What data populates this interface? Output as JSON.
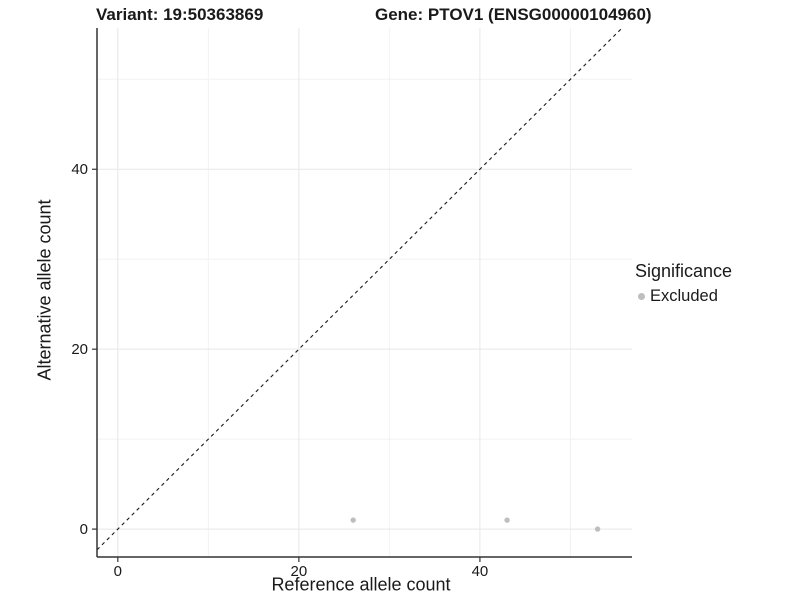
{
  "titles": {
    "variant": "Variant: 19:50363869",
    "gene": "Gene: PTOV1 (ENSG00000104960)"
  },
  "chart_data": {
    "type": "scatter",
    "xlabel": "Reference allele count",
    "ylabel": "Alternative allele count",
    "xlim": [
      -2.3,
      56.8
    ],
    "ylim": [
      -3.1,
      55.7
    ],
    "x_ticks": [
      0,
      20,
      40
    ],
    "y_ticks": [
      0,
      20,
      40
    ],
    "x_minor_ticks": [
      10,
      30,
      50
    ],
    "y_minor_ticks": [
      10,
      30,
      50
    ],
    "grid": "major and minor, light gray on white",
    "reference_line": {
      "type": "identity y=x",
      "style": "dashed",
      "color": "#1a1a1a"
    },
    "series": [
      {
        "name": "Excluded",
        "color": "#bebebe",
        "points": [
          [
            26,
            1
          ],
          [
            43,
            1
          ],
          [
            53,
            0
          ]
        ]
      }
    ]
  },
  "legend": {
    "title": "Significance",
    "position": "right",
    "items": [
      {
        "label": "Excluded",
        "color": "#bebebe"
      }
    ]
  },
  "colors": {
    "background": "#ffffff",
    "grid_major": "#e7e7e7",
    "grid_minor": "#f2f2f2",
    "axis": "#333333",
    "text": "#1a1a1a",
    "point": "#bebebe"
  }
}
